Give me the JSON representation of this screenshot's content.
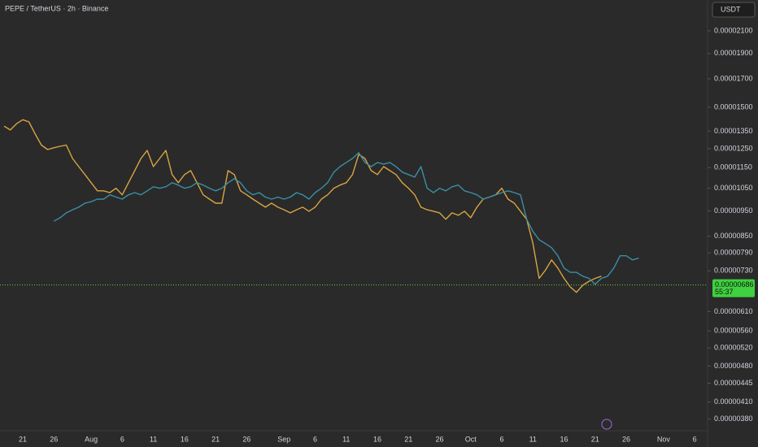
{
  "chart_data": {
    "type": "line",
    "title": "PEPE / TetherUS · 2h · Binance",
    "currency": "USDT",
    "log_scale": true,
    "ylim": [
      3.61e-06,
      2.405e-05
    ],
    "yticks": [
      {
        "value": 2.1e-05,
        "label": "0.00002100"
      },
      {
        "value": 1.9e-05,
        "label": "0.00001900"
      },
      {
        "value": 1.7e-05,
        "label": "0.00001700"
      },
      {
        "value": 1.5e-05,
        "label": "0.00001500"
      },
      {
        "value": 1.35e-05,
        "label": "0.00001350"
      },
      {
        "value": 1.25e-05,
        "label": "0.00001250"
      },
      {
        "value": 1.15e-05,
        "label": "0.00001150"
      },
      {
        "value": 1.05e-05,
        "label": "0.00001050"
      },
      {
        "value": 9.5e-06,
        "label": "0.00000950"
      },
      {
        "value": 8.5e-06,
        "label": "0.00000850"
      },
      {
        "value": 7.9e-06,
        "label": "0.00000790"
      },
      {
        "value": 7.3e-06,
        "label": "0.00000730"
      },
      {
        "value": 6.1e-06,
        "label": "0.00000610"
      },
      {
        "value": 5.6e-06,
        "label": "0.00000560"
      },
      {
        "value": 5.2e-06,
        "label": "0.00000520"
      },
      {
        "value": 4.8e-06,
        "label": "0.00000480"
      },
      {
        "value": 4.45e-06,
        "label": "0.00000445"
      },
      {
        "value": 4.1e-06,
        "label": "0.00000410"
      },
      {
        "value": 3.8e-06,
        "label": "0.00000380"
      }
    ],
    "last_price": {
      "value": 6.86e-06,
      "label": "0.00000686"
    },
    "countdown": "55:37",
    "categories": [
      null,
      null,
      null,
      "21",
      null,
      null,
      null,
      null,
      "26",
      null,
      null,
      null,
      null,
      null,
      "Aug",
      null,
      null,
      null,
      null,
      "6",
      null,
      null,
      null,
      null,
      "11",
      null,
      null,
      null,
      null,
      "16",
      null,
      null,
      null,
      null,
      "21",
      null,
      null,
      null,
      null,
      "26",
      null,
      null,
      null,
      null,
      null,
      "Sep",
      null,
      null,
      null,
      null,
      "6",
      null,
      null,
      null,
      null,
      "11",
      null,
      null,
      null,
      null,
      "16",
      null,
      null,
      null,
      null,
      "21",
      null,
      null,
      null,
      null,
      "26",
      null,
      null,
      null,
      null,
      "Oct",
      null,
      null,
      null,
      null,
      "6",
      null,
      null,
      null,
      null,
      "11",
      null,
      null,
      null,
      null,
      "16",
      null,
      null,
      null,
      null,
      "21",
      null,
      null,
      null,
      null,
      "26",
      null,
      null,
      null,
      null,
      null,
      "Nov",
      null,
      null,
      null,
      null,
      "6",
      null,
      null
    ],
    "series": [
      {
        "color": "#d9a441",
        "values": [
          1.38e-05,
          1.357e-05,
          1.395e-05,
          1.42e-05,
          1.406e-05,
          1.333e-05,
          1.27e-05,
          1.245e-05,
          1.255e-05,
          1.263e-05,
          1.27e-05,
          1.197e-05,
          1.155e-05,
          1.115e-05,
          1.076e-05,
          1.038e-05,
          1.038e-05,
          1.03e-05,
          1.05e-05,
          1.02e-05,
          1.076e-05,
          1.135e-05,
          1.197e-05,
          1.24e-05,
          1.155e-05,
          1.197e-05,
          1.24e-05,
          1.115e-05,
          1.076e-05,
          1.115e-05,
          1.135e-05,
          1.076e-05,
          1.02e-05,
          1.001e-05,
          9.83e-06,
          9.83e-06,
          1.135e-05,
          1.115e-05,
          1.038e-05,
          1.02e-05,
          1.001e-05,
          9.83e-06,
          9.66e-06,
          9.83e-06,
          9.66e-06,
          9.55e-06,
          9.42e-06,
          9.55e-06,
          9.66e-06,
          9.49e-06,
          9.66e-06,
          1.001e-05,
          1.02e-05,
          1.05e-05,
          1.065e-05,
          1.076e-05,
          1.115e-05,
          1.219e-05,
          1.197e-05,
          1.135e-05,
          1.115e-05,
          1.155e-05,
          1.135e-05,
          1.115e-05,
          1.076e-05,
          1.05e-05,
          1.02e-05,
          9.66e-06,
          9.55e-06,
          9.49e-06,
          9.42e-06,
          9.16e-06,
          9.42e-06,
          9.32e-06,
          9.49e-06,
          9.22e-06,
          9.66e-06,
          1.001e-05,
          1.01e-05,
          1.02e-05,
          1.05e-05,
          1.001e-05,
          9.83e-06,
          9.49e-06,
          9.16e-06,
          8.23e-06,
          7.06e-06,
          7.32e-06,
          7.66e-06,
          7.39e-06,
          7.06e-06,
          6.8e-06,
          6.64e-06,
          6.85e-06,
          6.97e-06,
          7.06e-06,
          7.13e-06,
          null,
          null,
          null,
          null,
          null,
          null,
          null,
          null,
          null,
          null,
          null,
          null,
          null,
          null,
          null,
          null,
          null
        ]
      },
      {
        "color": "#3b8ea5",
        "values": [
          null,
          null,
          null,
          null,
          null,
          null,
          null,
          null,
          9.08e-06,
          9.22e-06,
          9.42e-06,
          9.55e-06,
          9.66e-06,
          9.83e-06,
          9.9e-06,
          1.001e-05,
          1.001e-05,
          1.02e-05,
          1.01e-05,
          1.001e-05,
          1.02e-05,
          1.03e-05,
          1.02e-05,
          1.038e-05,
          1.057e-05,
          1.05e-05,
          1.057e-05,
          1.076e-05,
          1.065e-05,
          1.05e-05,
          1.057e-05,
          1.076e-05,
          1.065e-05,
          1.05e-05,
          1.038e-05,
          1.05e-05,
          1.076e-05,
          1.095e-05,
          1.076e-05,
          1.038e-05,
          1.02e-05,
          1.03e-05,
          1.01e-05,
          1.001e-05,
          1.01e-05,
          1.001e-05,
          1.01e-05,
          1.03e-05,
          1.02e-05,
          1.001e-05,
          1.03e-05,
          1.05e-05,
          1.076e-05,
          1.127e-05,
          1.155e-05,
          1.176e-05,
          1.197e-05,
          1.228e-05,
          1.176e-05,
          1.155e-05,
          1.176e-05,
          1.168e-05,
          1.176e-05,
          1.155e-05,
          1.127e-05,
          1.115e-05,
          1.103e-05,
          1.155e-05,
          1.05e-05,
          1.03e-05,
          1.05e-05,
          1.038e-05,
          1.057e-05,
          1.065e-05,
          1.038e-05,
          1.03e-05,
          1.02e-05,
          1.001e-05,
          1.01e-05,
          1.02e-05,
          1.03e-05,
          1.038e-05,
          1.03e-05,
          1.02e-05,
          9.16e-06,
          8.68e-06,
          8.37e-06,
          8.23e-06,
          8.08e-06,
          7.8e-06,
          7.39e-06,
          7.25e-06,
          7.25e-06,
          7.13e-06,
          7.06e-06,
          6.88e-06,
          7.06e-06,
          7.13e-06,
          7.39e-06,
          7.8e-06,
          7.8e-06,
          7.66e-06,
          7.72e-06,
          null,
          null,
          null,
          null,
          null,
          null,
          null,
          null,
          null,
          null,
          null
        ]
      }
    ]
  }
}
